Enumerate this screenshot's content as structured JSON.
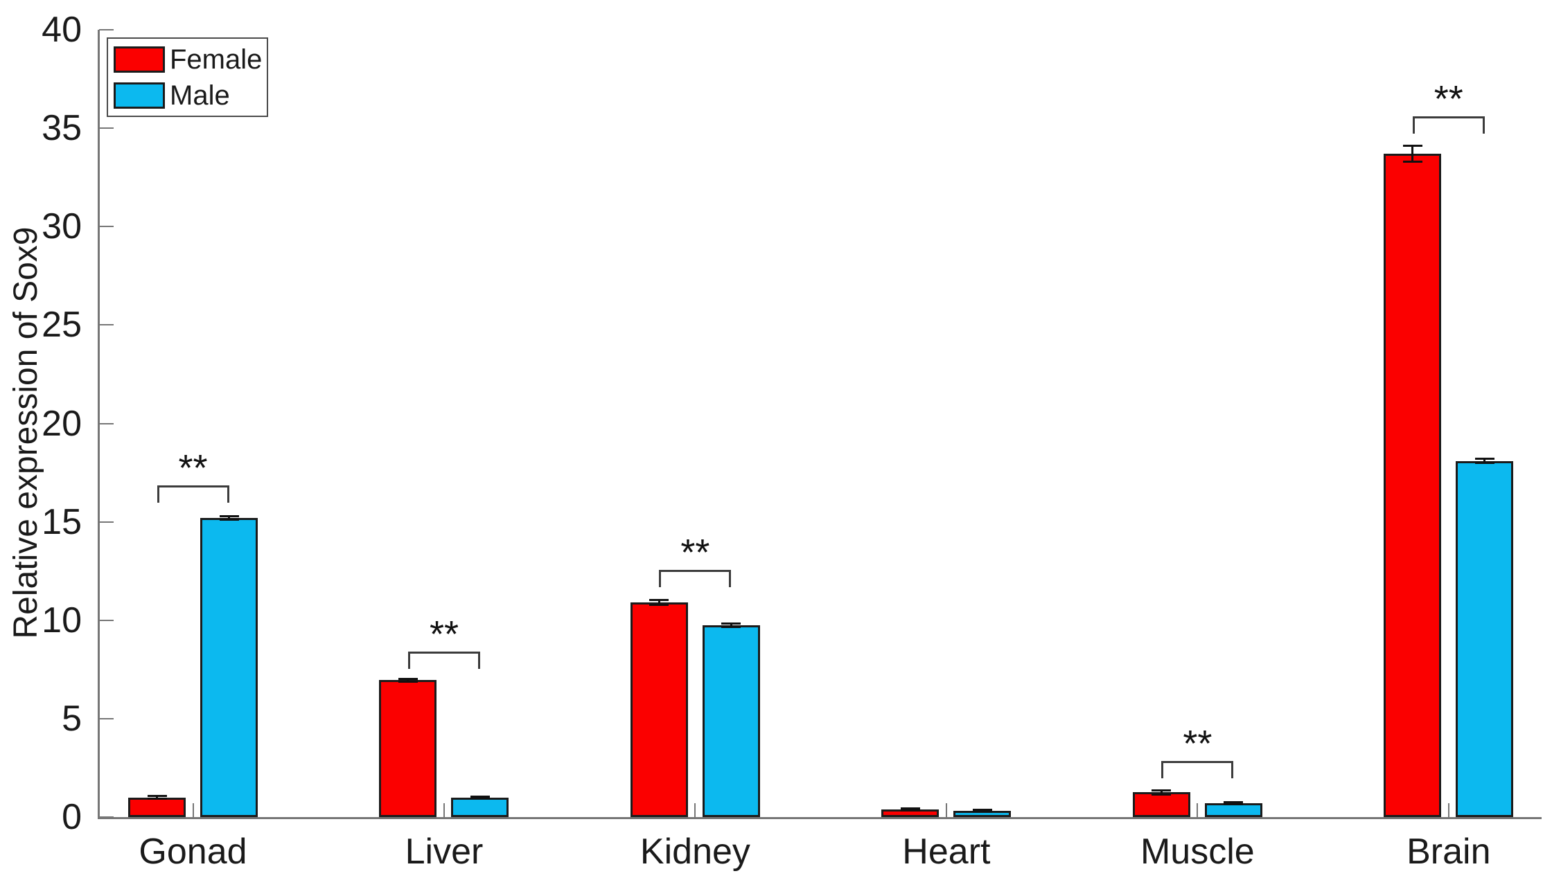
{
  "figure": {
    "background": "#ffffff"
  },
  "axis": {
    "ylabel": "Relative expression of Sox9",
    "y_ticks": [
      "0",
      "5",
      "10",
      "15",
      "20",
      "25",
      "30",
      "35",
      "40"
    ],
    "line_color": "#767676",
    "text_color": "#1a1a1a"
  },
  "legend": {
    "items": [
      {
        "label": "Female",
        "color": "#fb0000"
      },
      {
        "label": "Male",
        "color": "#0cb9ef"
      }
    ]
  },
  "chart_data": {
    "type": "bar",
    "title": "",
    "xlabel": "",
    "ylabel": "Relative expression of Sox9",
    "ylim": [
      0,
      40
    ],
    "y_tick_step": 5,
    "grid": false,
    "legend_position": "top-left",
    "categories": [
      "Gonad",
      "Liver",
      "Kidney",
      "Heart",
      "Muscle",
      "Brain"
    ],
    "series": [
      {
        "name": "Female",
        "color": "#fb0000",
        "values": [
          1.0,
          6.95,
          10.9,
          0.4,
          1.25,
          33.7
        ],
        "errors": [
          0.06,
          0.08,
          0.12,
          0.05,
          0.1,
          0.4
        ]
      },
      {
        "name": "Male",
        "color": "#0cb9ef",
        "values": [
          15.2,
          1.0,
          9.75,
          0.33,
          0.7,
          18.1
        ],
        "errors": [
          0.1,
          0.05,
          0.1,
          0.04,
          0.06,
          0.1
        ]
      }
    ],
    "significance": [
      {
        "category": "Gonad",
        "label": "**",
        "bracket_y": 16.85
      },
      {
        "category": "Liver",
        "label": "**",
        "bracket_y": 8.4
      },
      {
        "category": "Kidney",
        "label": "**",
        "bracket_y": 12.55
      },
      {
        "category": "Muscle",
        "label": "**",
        "bracket_y": 2.85
      },
      {
        "category": "Brain",
        "label": "**",
        "bracket_y": 35.6
      }
    ]
  }
}
